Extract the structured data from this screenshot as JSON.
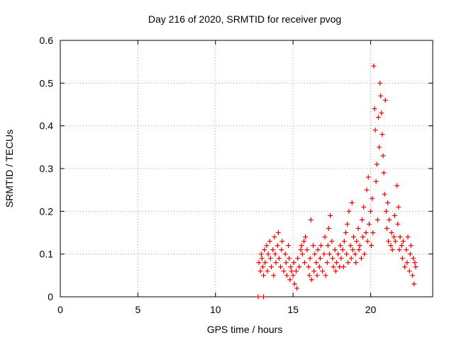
{
  "chart_data": {
    "type": "scatter",
    "title": "Day 216 of 2020, SRMTID for receiver pvog",
    "xlabel": "GPS time / hours",
    "ylabel": "SRMTID / TECUs",
    "xlim": [
      0,
      24
    ],
    "ylim": [
      0,
      0.6
    ],
    "xticks": [
      0,
      5,
      10,
      15,
      20
    ],
    "xtick_labels": [
      "0",
      "5",
      "10",
      "15",
      "20"
    ],
    "yticks": [
      0,
      0.1,
      0.2,
      0.3,
      0.4,
      0.5,
      0.6
    ],
    "ytick_labels": [
      "0",
      "0.1",
      "0.2",
      "0.3",
      "0.4",
      "0.5",
      "0.6"
    ],
    "grid": true,
    "marker": "+",
    "marker_color": "#ee0000",
    "series": [
      {
        "name": "SRMTID pvog",
        "points": [
          [
            12.75,
            0.0
          ],
          [
            13.1,
            0.0
          ],
          [
            12.8,
            0.08
          ],
          [
            12.9,
            0.06
          ],
          [
            12.95,
            0.1
          ],
          [
            13.0,
            0.09
          ],
          [
            13.05,
            0.07
          ],
          [
            13.1,
            0.05
          ],
          [
            13.15,
            0.11
          ],
          [
            13.2,
            0.08
          ],
          [
            13.3,
            0.12
          ],
          [
            13.35,
            0.06
          ],
          [
            13.4,
            0.1
          ],
          [
            13.5,
            0.13
          ],
          [
            13.55,
            0.09
          ],
          [
            13.6,
            0.07
          ],
          [
            13.7,
            0.11
          ],
          [
            13.75,
            0.05
          ],
          [
            13.8,
            0.14
          ],
          [
            13.85,
            0.1
          ],
          [
            13.9,
            0.08
          ],
          [
            14.0,
            0.12
          ],
          [
            14.05,
            0.15
          ],
          [
            14.1,
            0.09
          ],
          [
            14.2,
            0.07
          ],
          [
            14.25,
            0.11
          ],
          [
            14.3,
            0.13
          ],
          [
            14.4,
            0.06
          ],
          [
            14.5,
            0.1
          ],
          [
            14.55,
            0.08
          ],
          [
            14.6,
            0.05
          ],
          [
            14.7,
            0.12
          ],
          [
            14.75,
            0.09
          ],
          [
            14.8,
            0.04
          ],
          [
            14.85,
            0.07
          ],
          [
            14.9,
            0.06
          ],
          [
            15.0,
            0.05
          ],
          [
            15.05,
            0.08
          ],
          [
            15.1,
            0.03
          ],
          [
            15.2,
            0.06
          ],
          [
            15.25,
            0.02
          ],
          [
            15.3,
            0.09
          ],
          [
            15.4,
            0.07
          ],
          [
            15.5,
            0.11
          ],
          [
            15.55,
            0.12
          ],
          [
            15.6,
            0.1
          ],
          [
            15.7,
            0.13
          ],
          [
            15.75,
            0.08
          ],
          [
            15.8,
            0.14
          ],
          [
            15.9,
            0.11
          ],
          [
            16.0,
            0.07
          ],
          [
            16.05,
            0.05
          ],
          [
            16.1,
            0.09
          ],
          [
            16.15,
            0.18
          ],
          [
            16.2,
            0.04
          ],
          [
            16.3,
            0.12
          ],
          [
            16.35,
            0.06
          ],
          [
            16.4,
            0.1
          ],
          [
            16.5,
            0.08
          ],
          [
            16.55,
            0.05
          ],
          [
            16.6,
            0.11
          ],
          [
            16.7,
            0.07
          ],
          [
            16.75,
            0.09
          ],
          [
            16.8,
            0.12
          ],
          [
            16.9,
            0.06
          ],
          [
            17.0,
            0.1
          ],
          [
            17.05,
            0.14
          ],
          [
            17.1,
            0.05
          ],
          [
            17.2,
            0.08
          ],
          [
            17.25,
            0.12
          ],
          [
            17.3,
            0.16
          ],
          [
            17.35,
            0.1
          ],
          [
            17.4,
            0.19
          ],
          [
            17.5,
            0.13
          ],
          [
            17.55,
            0.09
          ],
          [
            17.6,
            0.07
          ],
          [
            17.7,
            0.11
          ],
          [
            17.75,
            0.06
          ],
          [
            17.8,
            0.08
          ],
          [
            17.9,
            0.1
          ],
          [
            18.0,
            0.07
          ],
          [
            18.05,
            0.12
          ],
          [
            18.1,
            0.09
          ],
          [
            18.2,
            0.11
          ],
          [
            18.25,
            0.07
          ],
          [
            18.3,
            0.13
          ],
          [
            18.4,
            0.15
          ],
          [
            18.45,
            0.1
          ],
          [
            18.5,
            0.17
          ],
          [
            18.55,
            0.08
          ],
          [
            18.6,
            0.2
          ],
          [
            18.7,
            0.12
          ],
          [
            18.75,
            0.09
          ],
          [
            18.8,
            0.22
          ],
          [
            18.85,
            0.11
          ],
          [
            18.9,
            0.14
          ],
          [
            19.0,
            0.1
          ],
          [
            19.05,
            0.08
          ],
          [
            19.1,
            0.13
          ],
          [
            19.2,
            0.16
          ],
          [
            19.25,
            0.11
          ],
          [
            19.3,
            0.12
          ],
          [
            19.4,
            0.09
          ],
          [
            19.45,
            0.18
          ],
          [
            19.5,
            0.14
          ],
          [
            19.55,
            0.21
          ],
          [
            19.6,
            0.1
          ],
          [
            19.7,
            0.15
          ],
          [
            19.75,
            0.25
          ],
          [
            19.8,
            0.13
          ],
          [
            19.85,
            0.28
          ],
          [
            19.9,
            0.17
          ],
          [
            20.0,
            0.2
          ],
          [
            20.05,
            0.12
          ],
          [
            20.1,
            0.23
          ],
          [
            20.15,
            0.15
          ],
          [
            20.2,
            0.54
          ],
          [
            20.25,
            0.44
          ],
          [
            20.3,
            0.39
          ],
          [
            20.35,
            0.27
          ],
          [
            20.4,
            0.31
          ],
          [
            20.45,
            0.18
          ],
          [
            20.5,
            0.42
          ],
          [
            20.55,
            0.35
          ],
          [
            20.6,
            0.5
          ],
          [
            20.65,
            0.47
          ],
          [
            20.7,
            0.43
          ],
          [
            20.75,
            0.38
          ],
          [
            20.8,
            0.33
          ],
          [
            20.85,
            0.29
          ],
          [
            20.9,
            0.24
          ],
          [
            20.95,
            0.46
          ],
          [
            21.0,
            0.2
          ],
          [
            21.05,
            0.16
          ],
          [
            21.1,
            0.22
          ],
          [
            21.15,
            0.13
          ],
          [
            21.2,
            0.18
          ],
          [
            21.3,
            0.12
          ],
          [
            21.35,
            0.15
          ],
          [
            21.4,
            0.11
          ],
          [
            21.5,
            0.14
          ],
          [
            21.55,
            0.19
          ],
          [
            21.6,
            0.13
          ],
          [
            21.7,
            0.26
          ],
          [
            21.75,
            0.17
          ],
          [
            21.8,
            0.21
          ],
          [
            21.85,
            0.11
          ],
          [
            21.9,
            0.14
          ],
          [
            22.0,
            0.12
          ],
          [
            22.05,
            0.09
          ],
          [
            22.1,
            0.13
          ],
          [
            22.2,
            0.07
          ],
          [
            22.3,
            0.11
          ],
          [
            22.35,
            0.08
          ],
          [
            22.4,
            0.14
          ],
          [
            22.5,
            0.06
          ],
          [
            22.55,
            0.1
          ],
          [
            22.6,
            0.12
          ],
          [
            22.7,
            0.05
          ],
          [
            22.75,
            0.09
          ],
          [
            22.8,
            0.03
          ],
          [
            22.85,
            0.08
          ],
          [
            22.9,
            0.07
          ]
        ]
      }
    ]
  }
}
